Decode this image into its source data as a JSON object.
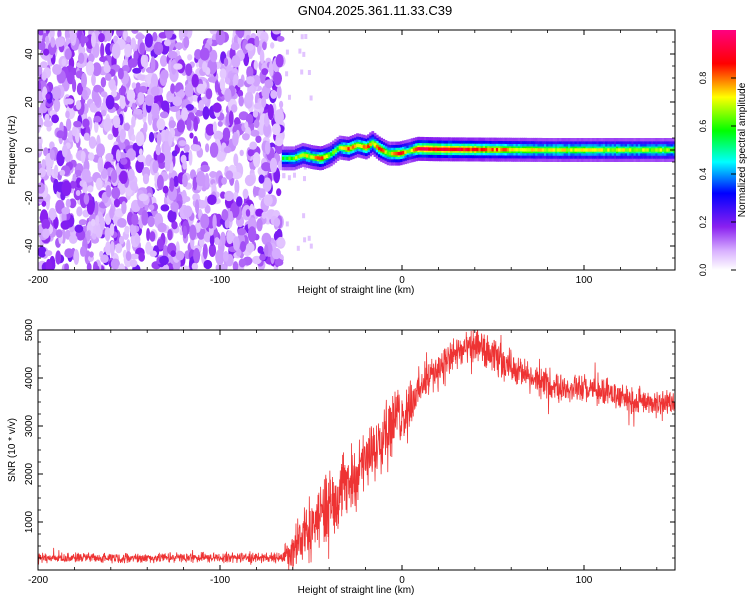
{
  "title": "GN04.2025.361.11.33.C39",
  "chart_data": [
    {
      "type": "heatmap",
      "title": "GN04.2025.361.11.33.C39",
      "xlabel": "Height of straight line (km)",
      "ylabel": "Frequency (Hz)",
      "xlim": [
        -200,
        150
      ],
      "ylim": [
        -50,
        50
      ],
      "x_ticks": [
        -200,
        -100,
        0,
        100
      ],
      "x_tick_labels": [
        "-200",
        "-100",
        "0",
        "100"
      ],
      "y_ticks": [
        -40,
        -20,
        0,
        20,
        40
      ],
      "y_tick_labels": [
        "-40",
        "-20",
        "0",
        "20",
        "40"
      ],
      "colorbar": {
        "label": "Normalized spectral amplitude",
        "range": [
          0,
          1
        ],
        "ticks": [
          0,
          0.2,
          0.4,
          0.6,
          0.8
        ],
        "tick_labels": [
          "0.0",
          "0.2",
          "0.4",
          "0.6",
          "0.8"
        ],
        "palette": [
          "#ffffff",
          "#9a20f0",
          "#0000ff",
          "#00ffff",
          "#00ff00",
          "#ffff00",
          "#ff0000",
          "#ff0080"
        ]
      },
      "noise_region_x": [
        -200,
        -66
      ],
      "signal_track": [
        {
          "x": -66,
          "f": -3.5,
          "amp": 0.55
        },
        {
          "x": -60,
          "f": -3.5,
          "amp": 0.62
        },
        {
          "x": -55,
          "f": -2.0,
          "amp": 0.68
        },
        {
          "x": -50,
          "f": -3.0,
          "amp": 0.7
        },
        {
          "x": -45,
          "f": -3.5,
          "amp": 0.85
        },
        {
          "x": -40,
          "f": -2.0,
          "amp": 0.6
        },
        {
          "x": -35,
          "f": 1.0,
          "amp": 0.62
        },
        {
          "x": -30,
          "f": 0.5,
          "amp": 0.8
        },
        {
          "x": -25,
          "f": 2.0,
          "amp": 0.75
        },
        {
          "x": -20,
          "f": 1.0,
          "amp": 0.82
        },
        {
          "x": -17,
          "f": 3.0,
          "amp": 0.7
        },
        {
          "x": -13,
          "f": 0.5,
          "amp": 0.85
        },
        {
          "x": -8,
          "f": -1.5,
          "amp": 0.65
        },
        {
          "x": -2,
          "f": -1.5,
          "amp": 0.9
        },
        {
          "x": 3,
          "f": -0.5,
          "amp": 0.6
        },
        {
          "x": 8,
          "f": 0.5,
          "amp": 0.9
        },
        {
          "x": 20,
          "f": 0.3,
          "amp": 0.92
        },
        {
          "x": 40,
          "f": 0.2,
          "amp": 0.85
        },
        {
          "x": 60,
          "f": 0.1,
          "amp": 0.75
        },
        {
          "x": 80,
          "f": 0.0,
          "amp": 0.7
        },
        {
          "x": 100,
          "f": 0.0,
          "amp": 0.7
        },
        {
          "x": 120,
          "f": 0.0,
          "amp": 0.68
        },
        {
          "x": 150,
          "f": 0.0,
          "amp": 0.65
        }
      ]
    },
    {
      "type": "line",
      "xlabel": "Height of straight line (km)",
      "ylabel": "SNR (10 * v/v)",
      "xlim": [
        -200,
        150
      ],
      "ylim": [
        0,
        5000
      ],
      "x_ticks": [
        -200,
        -100,
        0,
        100
      ],
      "x_tick_labels": [
        "-200",
        "-100",
        "0",
        "100"
      ],
      "y_ticks": [
        1000,
        2000,
        3000,
        4000,
        5000
      ],
      "y_tick_labels": [
        "1000",
        "2000",
        "3000",
        "4000",
        "5000"
      ],
      "color": "#ee3333",
      "envelope": [
        {
          "x": -200,
          "mean": 250,
          "spread": 120
        },
        {
          "x": -66,
          "mean": 260,
          "spread": 130
        },
        {
          "x": -60,
          "mean": 500,
          "spread": 600
        },
        {
          "x": -50,
          "mean": 900,
          "spread": 800
        },
        {
          "x": -40,
          "mean": 1400,
          "spread": 900
        },
        {
          "x": -30,
          "mean": 1800,
          "spread": 800
        },
        {
          "x": -20,
          "mean": 2200,
          "spread": 800
        },
        {
          "x": -10,
          "mean": 2900,
          "spread": 900
        },
        {
          "x": 0,
          "mean": 3200,
          "spread": 700
        },
        {
          "x": 10,
          "mean": 3800,
          "spread": 500
        },
        {
          "x": 20,
          "mean": 4200,
          "spread": 500
        },
        {
          "x": 30,
          "mean": 4500,
          "spread": 450
        },
        {
          "x": 40,
          "mean": 4650,
          "spread": 450
        },
        {
          "x": 50,
          "mean": 4450,
          "spread": 450
        },
        {
          "x": 60,
          "mean": 4250,
          "spread": 400
        },
        {
          "x": 70,
          "mean": 4000,
          "spread": 400
        },
        {
          "x": 80,
          "mean": 3850,
          "spread": 350
        },
        {
          "x": 90,
          "mean": 3800,
          "spread": 350
        },
        {
          "x": 100,
          "mean": 3780,
          "spread": 350
        },
        {
          "x": 110,
          "mean": 3700,
          "spread": 350
        },
        {
          "x": 120,
          "mean": 3600,
          "spread": 330
        },
        {
          "x": 130,
          "mean": 3500,
          "spread": 330
        },
        {
          "x": 140,
          "mean": 3450,
          "spread": 330
        },
        {
          "x": 150,
          "mean": 3500,
          "spread": 330
        }
      ]
    }
  ]
}
